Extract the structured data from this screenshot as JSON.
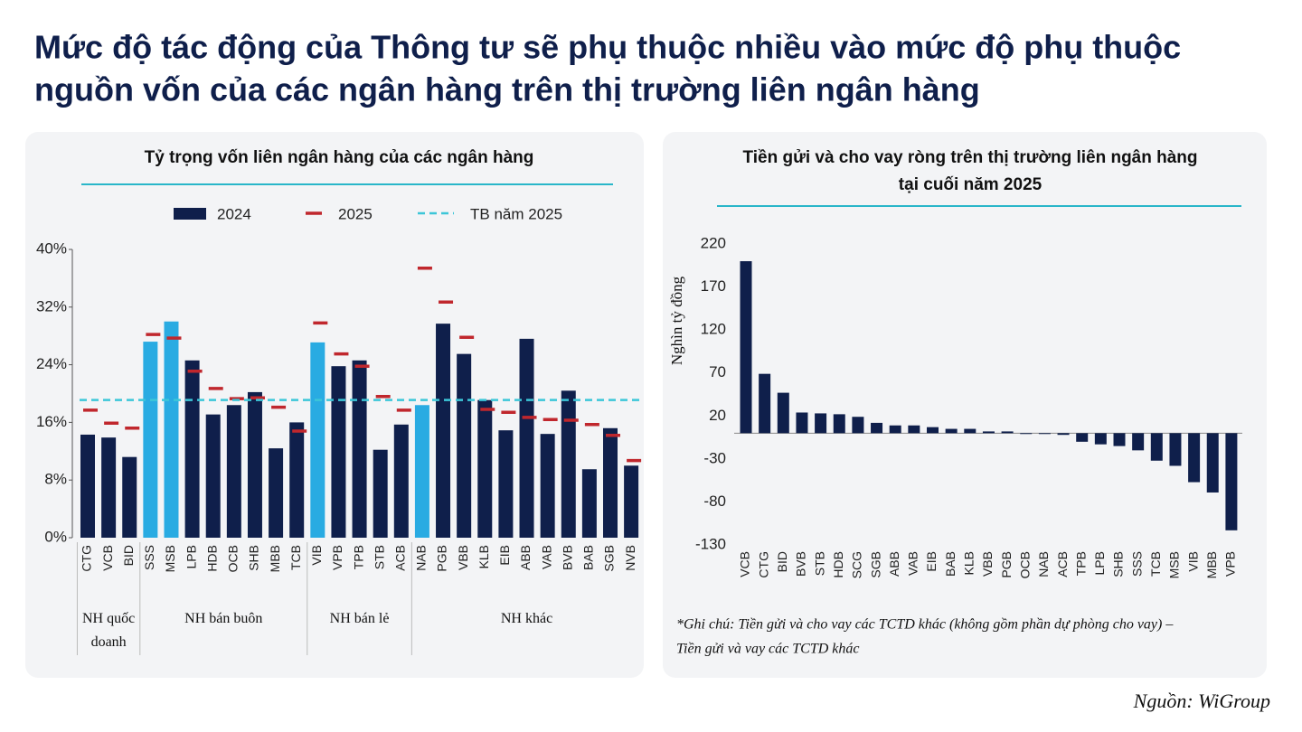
{
  "title": [
    "Mức độ tác động của Thông tư sẽ phụ thuộc nhiều vào mức độ phụ thuộc",
    "nguồn vốn của các ngân hàng trên thị trường liên ngân hàng"
  ],
  "chart_data": [
    {
      "type": "bar",
      "title": "Tỷ trọng vốn liên ngân hàng của các ngân hàng",
      "categories": [
        "CTG",
        "VCB",
        "BID",
        "SSS",
        "MSB",
        "LPB",
        "HDB",
        "OCB",
        "SHB",
        "MBB",
        "TCB",
        "VIB",
        "VPB",
        "TPB",
        "STB",
        "ACB",
        "NAB",
        "PGB",
        "VBB",
        "KLB",
        "EIB",
        "ABB",
        "VAB",
        "BVB",
        "BAB",
        "SGB",
        "NVB"
      ],
      "series": [
        {
          "name": "2024",
          "style": "bar",
          "color": "#0f1f4b",
          "colors": [
            "#0f1f4b",
            "#0f1f4b",
            "#0f1f4b",
            "#29abe2",
            "#29abe2",
            "#0f1f4b",
            "#0f1f4b",
            "#0f1f4b",
            "#0f1f4b",
            "#0f1f4b",
            "#0f1f4b",
            "#29abe2",
            "#0f1f4b",
            "#0f1f4b",
            "#0f1f4b",
            "#0f1f4b",
            "#29abe2",
            "#0f1f4b",
            "#0f1f4b",
            "#0f1f4b",
            "#0f1f4b",
            "#0f1f4b",
            "#0f1f4b",
            "#0f1f4b",
            "#0f1f4b",
            "#0f1f4b",
            "#0f1f4b"
          ],
          "values": [
            14.3,
            13.9,
            11.2,
            27.2,
            30.0,
            24.6,
            17.1,
            18.4,
            20.2,
            12.4,
            16.0,
            27.1,
            23.8,
            24.6,
            12.2,
            15.7,
            18.4,
            29.7,
            25.5,
            19.1,
            14.9,
            27.6,
            14.4,
            20.4,
            9.5,
            15.2,
            10.0
          ]
        },
        {
          "name": "2025",
          "style": "dash",
          "color": "#c0272d",
          "values": [
            17.7,
            15.9,
            15.2,
            28.2,
            27.7,
            23.1,
            20.7,
            19.3,
            19.4,
            18.1,
            14.8,
            29.8,
            25.5,
            23.8,
            19.6,
            17.7,
            37.4,
            32.7,
            27.8,
            17.8,
            17.4,
            16.7,
            16.4,
            16.3,
            15.7,
            14.2,
            10.7
          ]
        }
      ],
      "reference_line": {
        "name": "TB năm 2025",
        "value": 19.1,
        "color": "#3cc6d8"
      },
      "groups": [
        {
          "label": "NH quốc doanh",
          "span": 3
        },
        {
          "label": "NH bán buôn",
          "span": 8
        },
        {
          "label": "NH bán lẻ",
          "span": 5
        },
        {
          "label": "NH khác",
          "span": 11
        }
      ],
      "ylim": [
        0,
        40
      ],
      "yticks": [
        {
          "value": 0,
          "label": "0%"
        },
        {
          "value": 8,
          "label": "8%"
        },
        {
          "value": 16,
          "label": "16%"
        },
        {
          "value": 24,
          "label": "24%"
        },
        {
          "value": 32,
          "label": "32%"
        },
        {
          "value": 40,
          "label": "40%"
        }
      ]
    },
    {
      "type": "bar",
      "title": [
        "Tiền gửi và cho vay ròng trên thị trường liên ngân hàng",
        "tại cuối năm 2025"
      ],
      "y_label": "Nghìn tỷ đồng",
      "categories": [
        "VCB",
        "CTG",
        "BID",
        "BVB",
        "STB",
        "HDB",
        "SCG",
        "SGB",
        "ABB",
        "VAB",
        "EIB",
        "BAB",
        "KLB",
        "VBB",
        "PGB",
        "OCB",
        "NAB",
        "ACB",
        "TPB",
        "LPB",
        "SHB",
        "SSS",
        "TCB",
        "MSB",
        "VIB",
        "MBB",
        "VPB"
      ],
      "values": [
        200,
        69,
        47,
        24,
        23,
        22,
        19,
        12,
        9,
        9,
        7,
        5,
        5,
        2,
        2,
        -1,
        -1,
        -2,
        -10,
        -13,
        -15,
        -20,
        -32,
        -38,
        -57,
        -69,
        -113
      ],
      "color": "#0f1f4b",
      "ylim": [
        -130,
        220
      ],
      "yticks": [
        -130,
        -80,
        -30,
        20,
        70,
        120,
        170,
        220
      ]
    }
  ],
  "note": [
    "*Ghi chú: Tiền gửi và cho vay các TCTD khác (không gồm phần dự phòng cho vay) –",
    "Tiền gửi và vay các TCTD khác"
  ],
  "source": "Nguồn: WiGroup"
}
